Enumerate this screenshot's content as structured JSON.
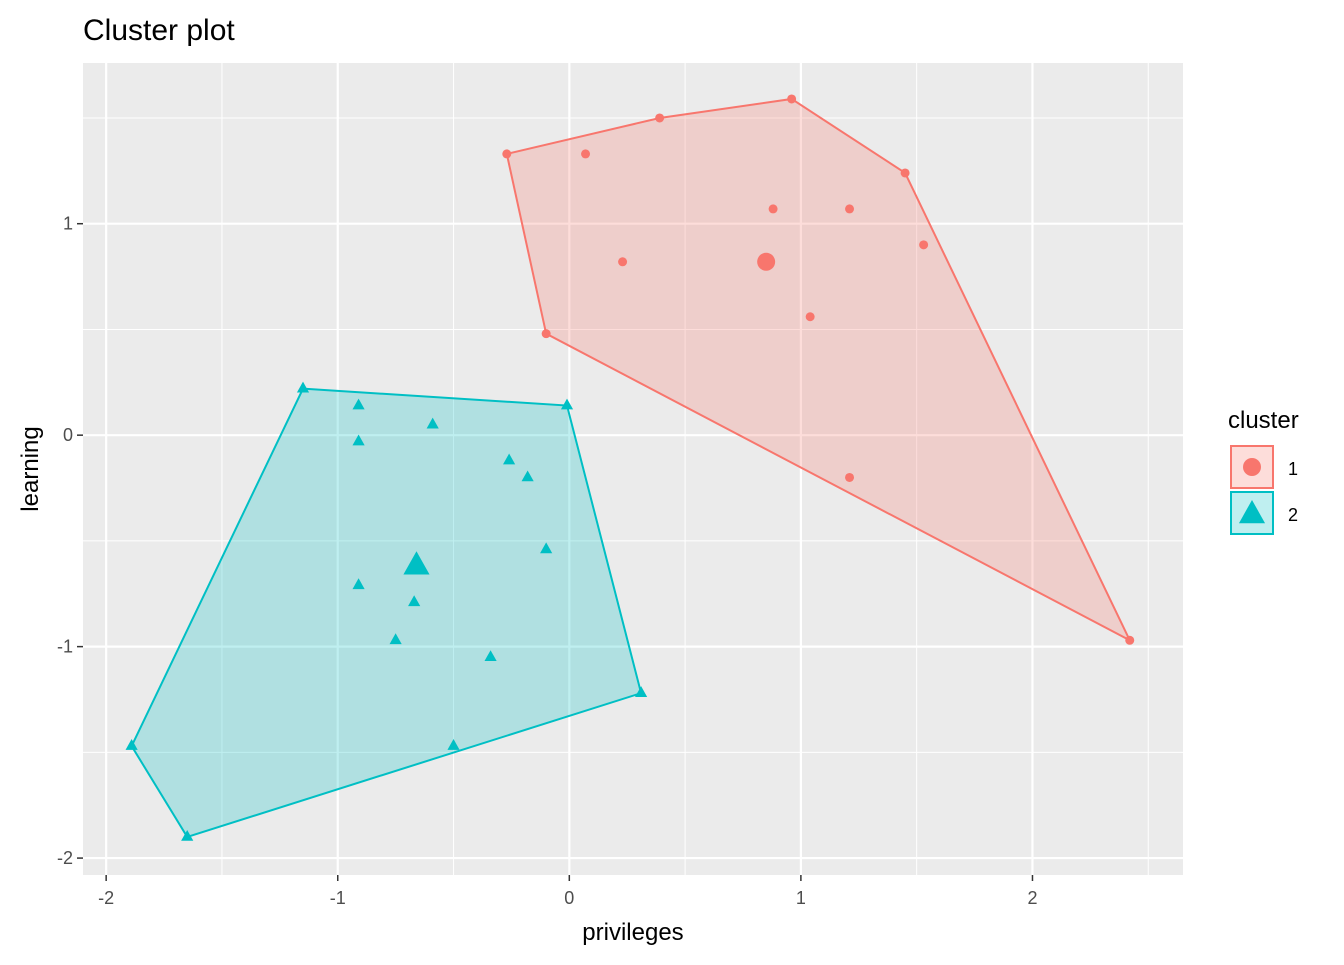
{
  "chart_data": {
    "type": "scatter",
    "title": "Cluster plot",
    "xlabel": "privileges",
    "ylabel": "learning",
    "xlim": [
      -2.1,
      2.65
    ],
    "ylim": [
      -2.08,
      1.76
    ],
    "xticks": [
      -2,
      -1,
      0,
      1,
      2
    ],
    "xtick_labels": [
      "-2",
      "-1",
      "0",
      "1",
      "2"
    ],
    "yticks": [
      -2,
      -1,
      0,
      1
    ],
    "ytick_labels": [
      "-2",
      "-1",
      "0",
      "1"
    ],
    "grid": true,
    "legend": {
      "title": "cluster",
      "position": "right",
      "entries": [
        "1",
        "2"
      ]
    },
    "series": [
      {
        "name": "1",
        "color": "#F8766D",
        "marker": "circle",
        "center": [
          0.85,
          0.82
        ],
        "points": [
          [
            -0.27,
            1.33
          ],
          [
            0.07,
            1.33
          ],
          [
            0.39,
            1.5
          ],
          [
            0.96,
            1.59
          ],
          [
            1.45,
            1.24
          ],
          [
            0.88,
            1.07
          ],
          [
            1.21,
            1.07
          ],
          [
            1.53,
            0.9
          ],
          [
            0.23,
            0.82
          ],
          [
            1.04,
            0.56
          ],
          [
            -0.1,
            0.48
          ],
          [
            1.21,
            -0.2
          ],
          [
            2.42,
            -0.97
          ]
        ],
        "hull": [
          [
            -0.27,
            1.33
          ],
          [
            0.39,
            1.5
          ],
          [
            0.96,
            1.59
          ],
          [
            1.45,
            1.24
          ],
          [
            2.42,
            -0.97
          ],
          [
            -0.1,
            0.48
          ]
        ]
      },
      {
        "name": "2",
        "color": "#00BFC4",
        "marker": "triangle",
        "center": [
          -0.66,
          -0.62
        ],
        "points": [
          [
            -1.15,
            0.22
          ],
          [
            -0.91,
            0.14
          ],
          [
            -0.91,
            -0.03
          ],
          [
            -0.59,
            0.05
          ],
          [
            -0.26,
            -0.12
          ],
          [
            -0.18,
            -0.2
          ],
          [
            -0.01,
            0.14
          ],
          [
            -0.1,
            -0.54
          ],
          [
            -0.91,
            -0.71
          ],
          [
            -0.67,
            -0.79
          ],
          [
            -0.75,
            -0.97
          ],
          [
            -0.34,
            -1.05
          ],
          [
            0.31,
            -1.22
          ],
          [
            -0.5,
            -1.47
          ],
          [
            -1.89,
            -1.47
          ],
          [
            -1.65,
            -1.9
          ]
        ],
        "hull": [
          [
            -1.15,
            0.22
          ],
          [
            -0.01,
            0.14
          ],
          [
            0.31,
            -1.22
          ],
          [
            -1.65,
            -1.9
          ],
          [
            -1.89,
            -1.47
          ]
        ]
      }
    ]
  }
}
